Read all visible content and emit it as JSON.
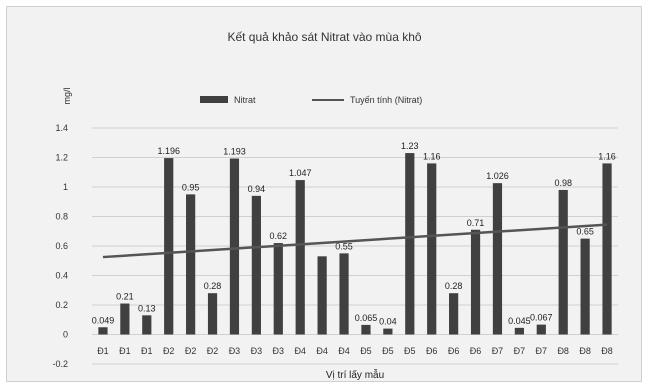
{
  "chart_data": {
    "type": "bar",
    "title": "Kết quả khảo sát Nitrat vào mùa khô",
    "ylabel": "mg/l",
    "xlabel": "Vị trí lấy mẫu",
    "ylim": [
      -0.2,
      1.4
    ],
    "yticks": [
      "1.4",
      "1.2",
      "1",
      "0.8",
      "0.6",
      "0.4",
      "0.2",
      "0",
      "-0.2"
    ],
    "legend": {
      "placement": "top",
      "bar_label": "Nitrat",
      "line_label": "Tuyến tính (Nitrat)"
    },
    "categories": [
      "Đ1",
      "Đ1",
      "Đ1",
      "Đ2",
      "Đ2",
      "Đ2",
      "Đ3",
      "Đ3",
      "Đ3",
      "Đ4",
      "Đ4",
      "Đ4",
      "Đ5",
      "Đ5",
      "Đ5",
      "Đ6",
      "Đ6",
      "Đ6",
      "Đ7",
      "Đ7",
      "Đ7",
      "Đ8",
      "Đ8",
      "Đ8"
    ],
    "series": [
      {
        "name": "Nitrat",
        "type": "bar",
        "color": "#404040",
        "values": [
          0.049,
          0.21,
          0.13,
          1.196,
          0.95,
          0.28,
          1.193,
          0.94,
          0.62,
          1.047,
          0.53,
          0.55,
          0.065,
          0.04,
          1.23,
          1.16,
          0.28,
          0.71,
          1.026,
          0.045,
          0.067,
          0.98,
          0.65,
          1.16
        ]
      }
    ],
    "data_labels": [
      "0.049",
      "0.21",
      "0.13",
      "1.196",
      "0.95",
      "0.28",
      "1.193",
      "0.94",
      "0.62",
      "1.047",
      "",
      "0.55",
      "0.065",
      "0.04",
      "1.23",
      "1.16",
      "0.28",
      "0.71",
      "1.026",
      "0.045",
      "0.067",
      "0.98",
      "0.65",
      "1.16"
    ],
    "trendline": {
      "name": "Tuyến tính (Nitrat)",
      "type": "linear",
      "start": 0.525,
      "end": 0.745,
      "color": "#555555"
    },
    "grid": true
  }
}
